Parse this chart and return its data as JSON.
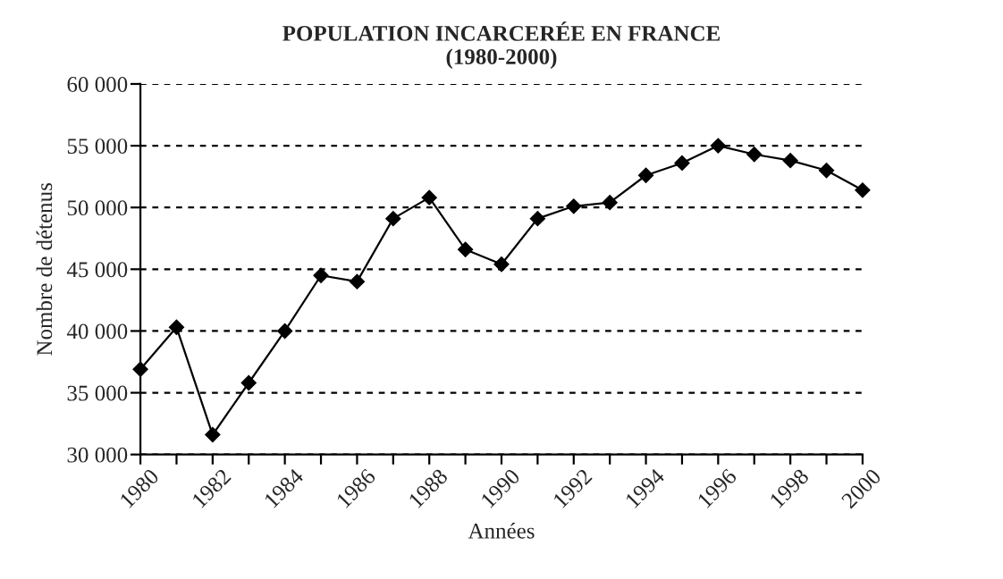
{
  "chart_data": {
    "type": "line",
    "title": "POPULATION INCARCERÉE EN FRANCE\n(1980-2000)",
    "xlabel": "Années",
    "ylabel": "Nombre de détenus",
    "x": [
      1980,
      1981,
      1982,
      1983,
      1984,
      1985,
      1986,
      1987,
      1988,
      1989,
      1990,
      1991,
      1992,
      1993,
      1994,
      1995,
      1996,
      1997,
      1998,
      1999,
      2000
    ],
    "series": [
      {
        "color": "#000000",
        "values": [
          36900,
          40300,
          31600,
          35800,
          40000,
          44500,
          44000,
          49100,
          50800,
          46600,
          45400,
          49100,
          50100,
          50400,
          52600,
          53600,
          55000,
          54300,
          53800,
          53000,
          51400
        ]
      }
    ],
    "xlim": [
      1980,
      2000
    ],
    "xticks": [
      1980,
      {
        "value": 1981,
        "label": null
      },
      1982,
      {
        "value": 1983,
        "label": null
      },
      1984,
      {
        "value": 1985,
        "label": null
      },
      1986,
      {
        "value": 1987,
        "label": null
      },
      1988,
      {
        "value": 1989,
        "label": null
      },
      1990,
      {
        "value": 1991,
        "label": null
      },
      1992,
      {
        "value": 1993,
        "label": null
      },
      1994,
      {
        "value": 1995,
        "label": null
      },
      1996,
      {
        "value": 1997,
        "label": null
      },
      1998,
      {
        "value": 1999,
        "label": null
      },
      2000
    ],
    "ylim": [
      30000,
      60000
    ],
    "yticks": [
      {
        "value": 30000,
        "label": "30 000"
      },
      {
        "value": 35000,
        "label": "35 000"
      },
      {
        "value": 40000,
        "label": "40 000"
      },
      {
        "value": 45000,
        "label": "45 000"
      },
      {
        "value": 50000,
        "label": "50 000"
      },
      {
        "value": 55000,
        "label": "55 000"
      },
      {
        "value": 60000,
        "label": "60 000"
      }
    ],
    "grid": "y",
    "marker": "diamond",
    "line_style": "solid",
    "legend": false
  }
}
